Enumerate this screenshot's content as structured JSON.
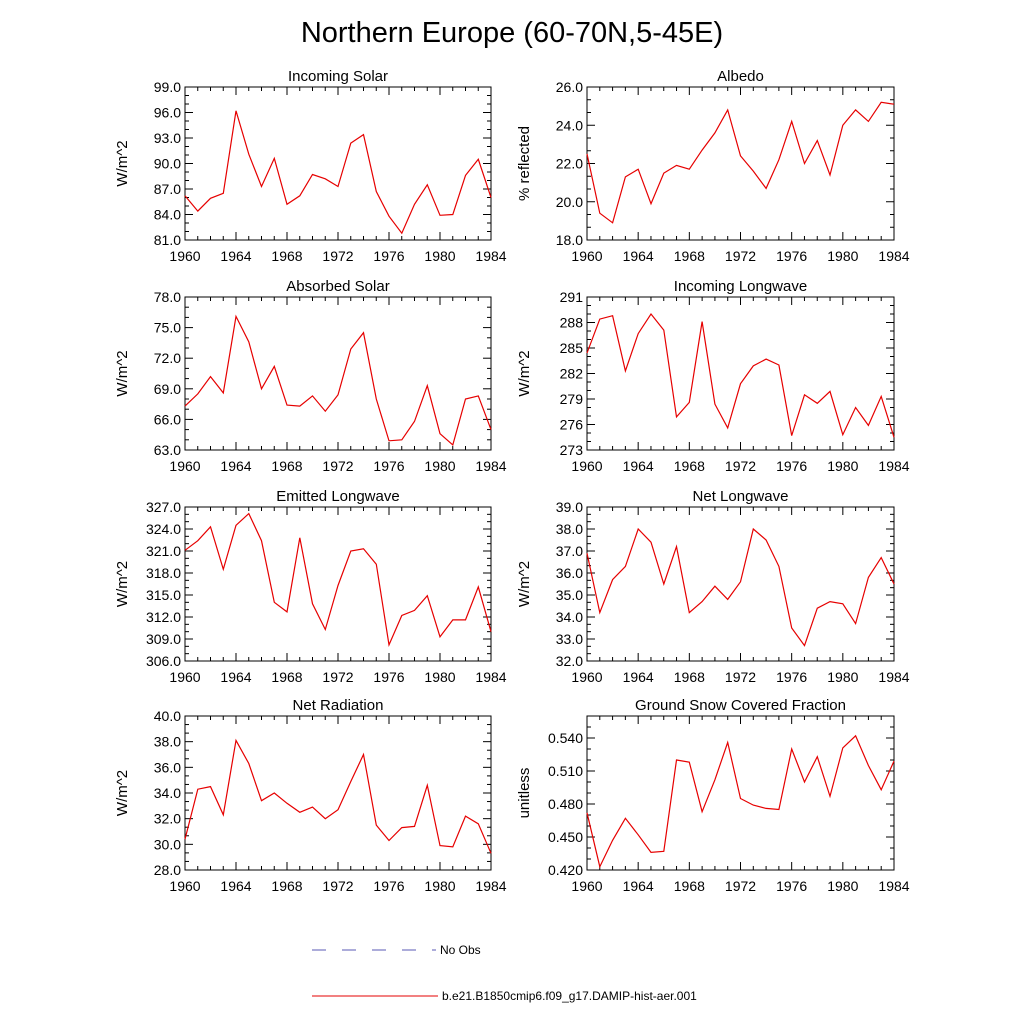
{
  "title": "Northern Europe (60-70N,5-45E)",
  "legend": [
    {
      "label": "No Obs",
      "color": "#5a5ab4",
      "style": "dashed"
    },
    {
      "label": "b.e21.B1850cmip6.f09_g17.DAMIP-hist-aer.001",
      "color": "#e60000",
      "style": "solid"
    }
  ],
  "chart_data": [
    {
      "type": "line",
      "title": "Incoming Solar",
      "ylabel": "W/m^2",
      "xlim": [
        1960,
        1984
      ],
      "ylim": [
        81,
        99
      ],
      "xticks": [
        1960,
        1964,
        1968,
        1972,
        1976,
        1980,
        1984
      ],
      "yticks": [
        81.0,
        84.0,
        87.0,
        90.0,
        93.0,
        96.0,
        99.0
      ],
      "ytick_labels": [
        "81.0",
        "84.0",
        "87.0",
        "90.0",
        "93.0",
        "96.0",
        "99.0"
      ],
      "x": [
        1960,
        1961,
        1962,
        1963,
        1964,
        1965,
        1966,
        1967,
        1968,
        1969,
        1970,
        1971,
        1972,
        1973,
        1974,
        1975,
        1976,
        1977,
        1978,
        1979,
        1980,
        1981,
        1982,
        1983,
        1984
      ],
      "series": [
        {
          "values": [
            86.2,
            84.4,
            85.9,
            86.5,
            96.2,
            91.1,
            87.3,
            90.6,
            85.2,
            86.2,
            88.7,
            88.2,
            87.3,
            92.4,
            93.4,
            86.7,
            83.8,
            81.8,
            85.2,
            87.5,
            83.9,
            84.0,
            88.6,
            90.5,
            86.0
          ],
          "color": "#e60000"
        }
      ]
    },
    {
      "type": "line",
      "title": "Albedo",
      "ylabel": "% reflected",
      "xlim": [
        1960,
        1984
      ],
      "ylim": [
        18,
        26
      ],
      "xticks": [
        1960,
        1964,
        1968,
        1972,
        1976,
        1980,
        1984
      ],
      "yticks": [
        18.0,
        20.0,
        22.0,
        24.0,
        26.0
      ],
      "ytick_labels": [
        "18.0",
        "20.0",
        "22.0",
        "24.0",
        "26.0"
      ],
      "x": [
        1960,
        1961,
        1962,
        1963,
        1964,
        1965,
        1966,
        1967,
        1968,
        1969,
        1970,
        1971,
        1972,
        1973,
        1974,
        1975,
        1976,
        1977,
        1978,
        1979,
        1980,
        1981,
        1982,
        1983,
        1984
      ],
      "series": [
        {
          "values": [
            22.5,
            19.4,
            18.9,
            21.3,
            21.7,
            19.9,
            21.5,
            21.9,
            21.7,
            22.7,
            23.6,
            24.8,
            22.4,
            21.6,
            20.7,
            22.2,
            24.2,
            22.0,
            23.2,
            21.4,
            24.0,
            24.8,
            24.2,
            25.2,
            25.1
          ],
          "color": "#e60000"
        }
      ]
    },
    {
      "type": "line",
      "title": "Absorbed Solar",
      "ylabel": "W/m^2",
      "xlim": [
        1960,
        1984
      ],
      "ylim": [
        63,
        78
      ],
      "xticks": [
        1960,
        1964,
        1968,
        1972,
        1976,
        1980,
        1984
      ],
      "yticks": [
        63.0,
        66.0,
        69.0,
        72.0,
        75.0,
        78.0
      ],
      "ytick_labels": [
        "63.0",
        "66.0",
        "69.0",
        "72.0",
        "75.0",
        "78.0"
      ],
      "x": [
        1960,
        1961,
        1962,
        1963,
        1964,
        1965,
        1966,
        1967,
        1968,
        1969,
        1970,
        1971,
        1972,
        1973,
        1974,
        1975,
        1976,
        1977,
        1978,
        1979,
        1980,
        1981,
        1982,
        1983,
        1984
      ],
      "series": [
        {
          "values": [
            67.3,
            68.5,
            70.2,
            68.6,
            76.1,
            73.6,
            69.0,
            71.2,
            67.4,
            67.3,
            68.3,
            66.8,
            68.4,
            72.9,
            74.5,
            68.0,
            63.9,
            64.0,
            65.8,
            69.3,
            64.6,
            63.5,
            68.0,
            68.3,
            65.0
          ],
          "color": "#e60000"
        }
      ]
    },
    {
      "type": "line",
      "title": "Incoming Longwave",
      "ylabel": "W/m^2",
      "xlim": [
        1960,
        1984
      ],
      "ylim": [
        273,
        291
      ],
      "xticks": [
        1960,
        1964,
        1968,
        1972,
        1976,
        1980,
        1984
      ],
      "yticks": [
        273,
        276,
        279,
        282,
        285,
        288,
        291
      ],
      "ytick_labels": [
        "273",
        "276",
        "279",
        "282",
        "285",
        "288",
        "291"
      ],
      "x": [
        1960,
        1961,
        1962,
        1963,
        1964,
        1965,
        1966,
        1967,
        1968,
        1969,
        1970,
        1971,
        1972,
        1973,
        1974,
        1975,
        1976,
        1977,
        1978,
        1979,
        1980,
        1981,
        1982,
        1983,
        1984
      ],
      "series": [
        {
          "values": [
            284.4,
            288.4,
            288.8,
            282.3,
            286.7,
            289.0,
            287.1,
            276.9,
            278.6,
            288.1,
            278.4,
            275.6,
            280.8,
            282.9,
            283.7,
            283.0,
            274.7,
            279.5,
            278.5,
            279.9,
            274.8,
            278.0,
            275.9,
            279.3,
            274.5
          ],
          "color": "#e60000"
        }
      ]
    },
    {
      "type": "line",
      "title": "Emitted Longwave",
      "ylabel": "W/m^2",
      "xlim": [
        1960,
        1984
      ],
      "ylim": [
        306,
        327
      ],
      "xticks": [
        1960,
        1964,
        1968,
        1972,
        1976,
        1980,
        1984
      ],
      "yticks": [
        306.0,
        309.0,
        312.0,
        315.0,
        318.0,
        321.0,
        324.0,
        327.0
      ],
      "ytick_labels": [
        "306.0",
        "309.0",
        "312.0",
        "315.0",
        "318.0",
        "321.0",
        "324.0",
        "327.0"
      ],
      "x": [
        1960,
        1961,
        1962,
        1963,
        1964,
        1965,
        1966,
        1967,
        1968,
        1969,
        1970,
        1971,
        1972,
        1973,
        1974,
        1975,
        1976,
        1977,
        1978,
        1979,
        1980,
        1981,
        1982,
        1983,
        1984
      ],
      "series": [
        {
          "values": [
            321.1,
            322.4,
            324.3,
            318.5,
            324.5,
            326.1,
            322.4,
            314.0,
            312.7,
            322.8,
            313.8,
            310.3,
            316.3,
            321.0,
            321.3,
            319.2,
            308.2,
            312.2,
            312.9,
            314.9,
            309.3,
            311.6,
            311.6,
            316.1,
            310.0
          ],
          "color": "#e60000"
        }
      ]
    },
    {
      "type": "line",
      "title": "Net Longwave",
      "ylabel": "W/m^2",
      "xlim": [
        1960,
        1984
      ],
      "ylim": [
        32,
        39
      ],
      "xticks": [
        1960,
        1964,
        1968,
        1972,
        1976,
        1980,
        1984
      ],
      "yticks": [
        32.0,
        33.0,
        34.0,
        35.0,
        36.0,
        37.0,
        38.0,
        39.0
      ],
      "ytick_labels": [
        "32.0",
        "33.0",
        "34.0",
        "35.0",
        "36.0",
        "37.0",
        "38.0",
        "39.0"
      ],
      "x": [
        1960,
        1961,
        1962,
        1963,
        1964,
        1965,
        1966,
        1967,
        1968,
        1969,
        1970,
        1971,
        1972,
        1973,
        1974,
        1975,
        1976,
        1977,
        1978,
        1979,
        1980,
        1981,
        1982,
        1983,
        1984
      ],
      "series": [
        {
          "values": [
            36.9,
            34.2,
            35.7,
            36.3,
            38.0,
            37.4,
            35.5,
            37.2,
            34.2,
            34.7,
            35.4,
            34.8,
            35.6,
            38.0,
            37.5,
            36.3,
            33.5,
            32.7,
            34.4,
            34.7,
            34.6,
            33.7,
            35.8,
            36.7,
            35.5
          ],
          "color": "#e60000"
        }
      ]
    },
    {
      "type": "line",
      "title": "Net Radiation",
      "ylabel": "W/m^2",
      "xlim": [
        1960,
        1984
      ],
      "ylim": [
        28,
        40
      ],
      "xticks": [
        1960,
        1964,
        1968,
        1972,
        1976,
        1980,
        1984
      ],
      "yticks": [
        28.0,
        30.0,
        32.0,
        34.0,
        36.0,
        38.0,
        40.0
      ],
      "ytick_labels": [
        "28.0",
        "30.0",
        "32.0",
        "34.0",
        "36.0",
        "38.0",
        "40.0"
      ],
      "x": [
        1960,
        1961,
        1962,
        1963,
        1964,
        1965,
        1966,
        1967,
        1968,
        1969,
        1970,
        1971,
        1972,
        1973,
        1974,
        1975,
        1976,
        1977,
        1978,
        1979,
        1980,
        1981,
        1982,
        1983,
        1984
      ],
      "series": [
        {
          "values": [
            30.4,
            34.3,
            34.5,
            32.3,
            38.1,
            36.3,
            33.4,
            34.0,
            33.2,
            32.5,
            32.9,
            32.0,
            32.7,
            34.9,
            37.0,
            31.5,
            30.3,
            31.3,
            31.4,
            34.6,
            29.9,
            29.8,
            32.2,
            31.6,
            29.3
          ],
          "color": "#e60000"
        }
      ]
    },
    {
      "type": "line",
      "title": "Ground Snow Covered Fraction",
      "ylabel": "unitless",
      "xlim": [
        1960,
        1984
      ],
      "ylim": [
        0.42,
        0.56
      ],
      "xticks": [
        1960,
        1964,
        1968,
        1972,
        1976,
        1980,
        1984
      ],
      "yticks": [
        0.42,
        0.45,
        0.48,
        0.51,
        0.54
      ],
      "ytick_labels": [
        "0.420",
        "0.450",
        "0.480",
        "0.510",
        "0.540"
      ],
      "x": [
        1960,
        1961,
        1962,
        1963,
        1964,
        1965,
        1966,
        1967,
        1968,
        1969,
        1970,
        1971,
        1972,
        1973,
        1974,
        1975,
        1976,
        1977,
        1978,
        1979,
        1980,
        1981,
        1982,
        1983,
        1984
      ],
      "series": [
        {
          "values": [
            0.472,
            0.423,
            0.447,
            0.467,
            0.452,
            0.436,
            0.437,
            0.52,
            0.518,
            0.473,
            0.502,
            0.536,
            0.485,
            0.479,
            0.476,
            0.475,
            0.53,
            0.5,
            0.523,
            0.487,
            0.531,
            0.542,
            0.515,
            0.493,
            0.519
          ],
          "color": "#e60000"
        }
      ]
    }
  ]
}
